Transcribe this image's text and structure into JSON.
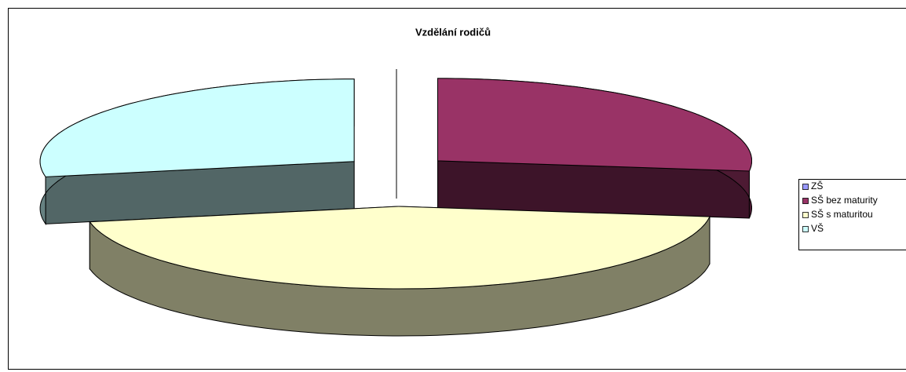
{
  "chart_data": {
    "type": "pie",
    "title": "Vzdělání rodičů",
    "categories": [
      "ZŠ",
      "SŠ bez maturity",
      "SŠ s maturitou",
      "VŠ"
    ],
    "values": [
      0,
      27,
      45,
      28
    ],
    "colors": [
      "#9999ff",
      "#993366",
      "#ffffcc",
      "#ccffff"
    ],
    "legend": "right"
  }
}
